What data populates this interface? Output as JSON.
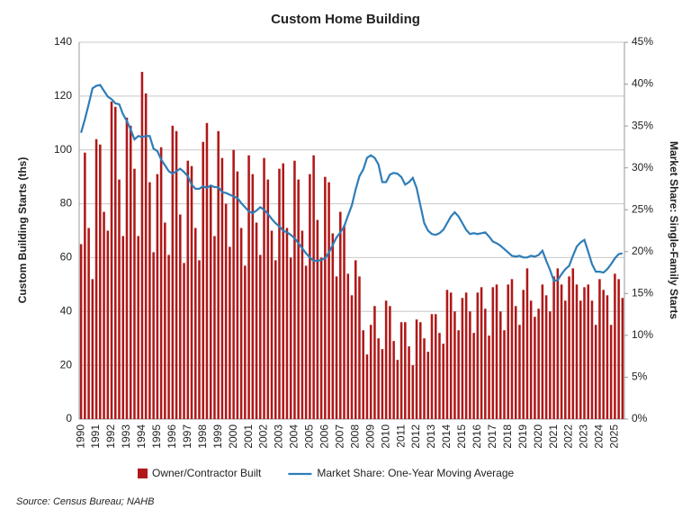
{
  "chart_data": {
    "type": "bar_line",
    "title": "Custom Home Building",
    "y_label": "Custom Building Starts (ths)",
    "y2_label": "Market Share: Single-Family Starts",
    "source": "Source: Census Bureau; NAHB",
    "categories": [
      "1990",
      null,
      null,
      null,
      "1991",
      null,
      null,
      null,
      "1992",
      null,
      null,
      null,
      "1993",
      null,
      null,
      null,
      "1994",
      null,
      null,
      null,
      "1995",
      null,
      null,
      null,
      "1996",
      null,
      null,
      null,
      "1997",
      null,
      null,
      null,
      "1998",
      null,
      null,
      null,
      "1999",
      null,
      null,
      null,
      "2000",
      null,
      null,
      null,
      "2001",
      null,
      null,
      null,
      "2002",
      null,
      null,
      null,
      "2003",
      null,
      null,
      null,
      "2004",
      null,
      null,
      null,
      "2005",
      null,
      null,
      null,
      "2006",
      null,
      null,
      null,
      "2007",
      null,
      null,
      null,
      "2008",
      null,
      null,
      null,
      "2009",
      null,
      null,
      null,
      "2010",
      null,
      null,
      null,
      "2011",
      null,
      null,
      null,
      "2012",
      null,
      null,
      null,
      "2013",
      null,
      null,
      null,
      "2014",
      null,
      null,
      null,
      "2015",
      null,
      null,
      null,
      "2016",
      null,
      null,
      null,
      "2017",
      null,
      null,
      null,
      "2018",
      null,
      null,
      null,
      "2019",
      null,
      null,
      null,
      "2020",
      null,
      null,
      null,
      "2021",
      null,
      null,
      null,
      "2022",
      null,
      null,
      null,
      "2023",
      null,
      null,
      null,
      "2024",
      null,
      null,
      null,
      "2025",
      null,
      null
    ],
    "series": [
      {
        "name": "Owner/Contractor Built",
        "type": "bar",
        "axis": "y",
        "color": "#b01818",
        "values": [
          65,
          99,
          71,
          52,
          104,
          102,
          77,
          70,
          118,
          116,
          89,
          68,
          112,
          109,
          93,
          68,
          129,
          121,
          88,
          62,
          91,
          101,
          73,
          61,
          109,
          107,
          76,
          58,
          96,
          94,
          71,
          59,
          103,
          110,
          87,
          68,
          107,
          97,
          80,
          64,
          100,
          92,
          71,
          57,
          98,
          91,
          73,
          61,
          97,
          89,
          70,
          59,
          93,
          95,
          71,
          60,
          96,
          89,
          70,
          57,
          91,
          98,
          74,
          60,
          90,
          88,
          69,
          53,
          77,
          72,
          54,
          46,
          59,
          53,
          33,
          24,
          35,
          42,
          30,
          26,
          44,
          42,
          29,
          22,
          36,
          36,
          27,
          20,
          37,
          36,
          30,
          25,
          39,
          39,
          32,
          28,
          48,
          47,
          40,
          33,
          45,
          47,
          40,
          32,
          47,
          49,
          41,
          31,
          49,
          50,
          40,
          33,
          50,
          52,
          42,
          35,
          48,
          56,
          44,
          38,
          41,
          50,
          46,
          40,
          53,
          56,
          50,
          44,
          53,
          56,
          50,
          44,
          49,
          50,
          44,
          35,
          52,
          48,
          46,
          35,
          54,
          52,
          45
        ]
      },
      {
        "name": "Market Share: One-Year Moving Average",
        "type": "line",
        "axis": "y2",
        "color": "#2e7db8",
        "values": [
          34.2,
          35.8,
          37.6,
          39.5,
          39.8,
          39.9,
          39.2,
          38.5,
          38.2,
          37.7,
          37.6,
          36.4,
          35.6,
          34.6,
          33.4,
          33.8,
          33.7,
          33.8,
          33.8,
          32.3,
          32.0,
          31.0,
          30.3,
          29.6,
          29.3,
          29.6,
          29.9,
          29.5,
          29.0,
          28.0,
          27.5,
          27.5,
          27.8,
          27.6,
          27.9,
          27.7,
          27.7,
          27.1,
          27.0,
          26.8,
          26.6,
          26.4,
          25.8,
          25.3,
          24.8,
          24.6,
          24.9,
          25.3,
          25.0,
          24.5,
          23.9,
          23.4,
          23.0,
          22.5,
          22.3,
          22.0,
          21.6,
          21.0,
          20.4,
          19.8,
          19.3,
          18.9,
          18.9,
          19.0,
          19.2,
          19.9,
          20.8,
          21.7,
          22.3,
          23.0,
          24.3,
          25.5,
          27.4,
          29.0,
          29.8,
          31.2,
          31.5,
          31.2,
          30.4,
          28.3,
          28.3,
          29.2,
          29.4,
          29.3,
          28.9,
          28.0,
          28.3,
          28.8,
          27.6,
          25.5,
          23.4,
          22.5,
          22.1,
          22.0,
          22.2,
          22.6,
          23.4,
          24.2,
          24.7,
          24.2,
          23.4,
          22.6,
          22.1,
          22.2,
          22.1,
          22.2,
          22.3,
          21.8,
          21.2,
          21.0,
          20.7,
          20.3,
          19.9,
          19.5,
          19.4,
          19.5,
          19.3,
          19.3,
          19.5,
          19.4,
          19.6,
          20.1,
          18.9,
          17.8,
          16.5,
          16.6,
          17.3,
          17.9,
          18.3,
          19.5,
          20.6,
          21.1,
          21.4,
          20.0,
          18.5,
          17.6,
          17.6,
          17.5,
          17.9,
          18.5,
          19.2,
          19.7,
          19.8
        ]
      }
    ],
    "ylim": [
      0,
      140
    ],
    "yticks": [
      0,
      20,
      40,
      60,
      80,
      100,
      120,
      140
    ],
    "y2lim": [
      0,
      45
    ],
    "y2ticks": [
      {
        "value": 0,
        "label": "0%"
      },
      {
        "value": 5,
        "label": "5%"
      },
      {
        "value": 10,
        "label": "10%"
      },
      {
        "value": 15,
        "label": "15%"
      },
      {
        "value": 20,
        "label": "20%"
      },
      {
        "value": 25,
        "label": "25%"
      },
      {
        "value": 30,
        "label": "30%"
      },
      {
        "value": 35,
        "label": "35%"
      },
      {
        "value": 40,
        "label": "40%"
      },
      {
        "value": 45,
        "label": "45%"
      }
    ],
    "grid": true,
    "legend": "bottom"
  }
}
